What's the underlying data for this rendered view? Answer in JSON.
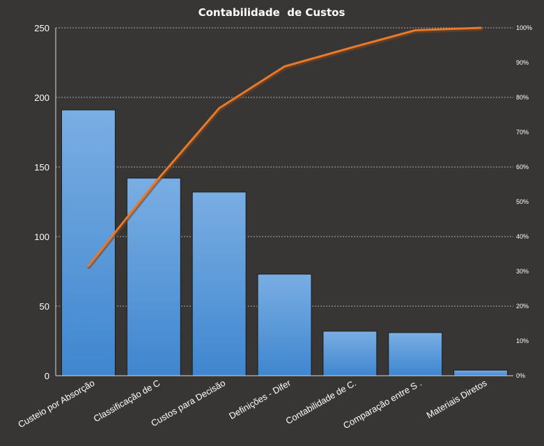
{
  "chart_data": {
    "type": "bar",
    "title": "Contabilidade  de Custos",
    "categories": [
      "Custeio por  Absorção",
      "Classificação de C",
      "Custos para Decisão",
      "Definições - Difer",
      "Contabilidade de C.",
      "Comparação entre S .",
      "Materiais Diretos"
    ],
    "values": [
      191,
      142,
      132,
      73,
      32,
      31,
      4
    ],
    "cumulative_percent": [
      31.6,
      55.1,
      76.9,
      88.9,
      94.2,
      99.3,
      100
    ],
    "ylim": [
      0,
      250
    ],
    "y_ticks": [
      0,
      50,
      100,
      150,
      200,
      250
    ],
    "y2lim": [
      0,
      100
    ],
    "y2_ticks": [
      "0%",
      "10%",
      "20%",
      "30%",
      "40%",
      "50%",
      "60%",
      "70%",
      "80%",
      "90%",
      "100%"
    ],
    "grid": true,
    "legend": "none",
    "colors": {
      "background": "#383634",
      "bar_top": "#7aaee3",
      "bar_bottom": "#3f86cf",
      "line": "#e87a2c",
      "line_shadow": "#7a4420",
      "grid": "#cfcfcf",
      "text": "#ffffff"
    }
  }
}
